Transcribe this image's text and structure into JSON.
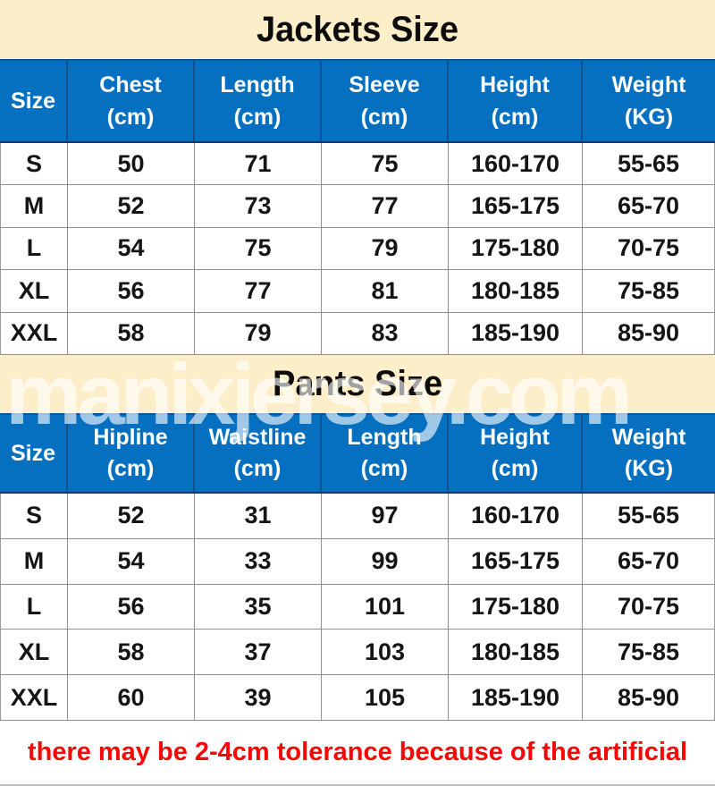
{
  "jackets": {
    "title": "Jackets Size",
    "headers": [
      {
        "label": "Size",
        "unit": ""
      },
      {
        "label": "Chest",
        "unit": "(cm)"
      },
      {
        "label": "Length",
        "unit": "(cm)"
      },
      {
        "label": "Sleeve",
        "unit": "(cm)"
      },
      {
        "label": "Height",
        "unit": "(cm)"
      },
      {
        "label": "Weight",
        "unit": "(KG)"
      }
    ],
    "rows": [
      [
        "S",
        "50",
        "71",
        "75",
        "160-170",
        "55-65"
      ],
      [
        "M",
        "52",
        "73",
        "77",
        "165-175",
        "65-70"
      ],
      [
        "L",
        "54",
        "75",
        "79",
        "175-180",
        "70-75"
      ],
      [
        "XL",
        "56",
        "77",
        "81",
        "180-185",
        "75-85"
      ],
      [
        "XXL",
        "58",
        "79",
        "83",
        "185-190",
        "85-90"
      ]
    ]
  },
  "pants": {
    "title": "Pants Size",
    "headers": [
      {
        "label": "Size",
        "unit": ""
      },
      {
        "label": "Hipline",
        "unit": "(cm)"
      },
      {
        "label": "Waistline",
        "unit": "(cm)"
      },
      {
        "label": "Length",
        "unit": "(cm)"
      },
      {
        "label": "Height",
        "unit": "(cm)"
      },
      {
        "label": "Weight",
        "unit": "(KG)"
      }
    ],
    "rows": [
      [
        "S",
        "52",
        "31",
        "97",
        "160-170",
        "55-65"
      ],
      [
        "M",
        "54",
        "33",
        "99",
        "165-175",
        "65-70"
      ],
      [
        "L",
        "56",
        "35",
        "101",
        "175-180",
        "70-75"
      ],
      [
        "XL",
        "58",
        "37",
        "103",
        "180-185",
        "75-85"
      ],
      [
        "XXL",
        "60",
        "39",
        "105",
        "185-190",
        "85-90"
      ]
    ]
  },
  "watermark": {
    "text": "manixjersey.com"
  },
  "footer": {
    "note": "there may be 2-4cm tolerance because of the artificial"
  },
  "colors": {
    "banner_cream": "#FDEECA",
    "header_blue": "#0670C0",
    "header_divider_navy": "#11528E",
    "header_border_dark": "#0C3F70",
    "grid_line_gray": "#8F8F8F",
    "note_red": "#F90606",
    "title_black": "#0D0D0D",
    "watermark_white": "#FFFFFF"
  }
}
